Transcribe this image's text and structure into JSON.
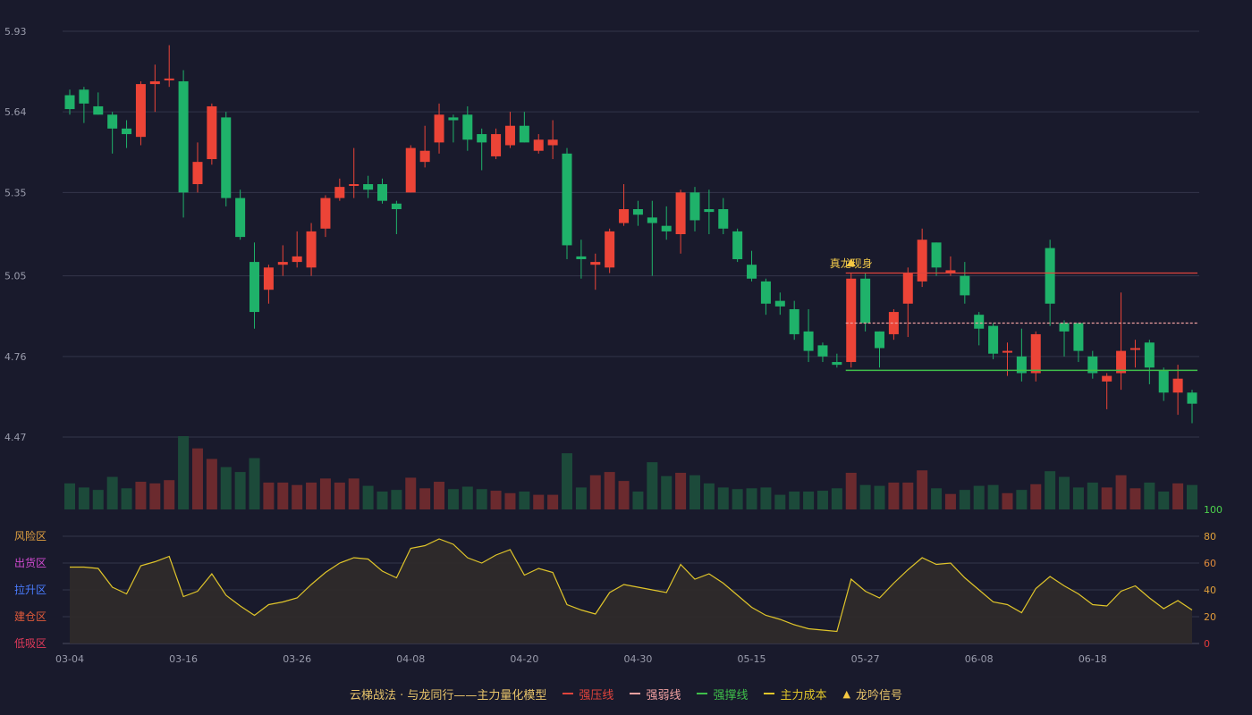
{
  "colors": {
    "background": "#191a2c",
    "grid": "#33354a",
    "axis_text": "#9a9cac",
    "up": "#ec4437",
    "down": "#1fb26a",
    "vol_up": "#6b2a2e",
    "vol_down": "#1c4a3a",
    "osc_line": "#e0c52a",
    "osc_fill": "#2e2a2a",
    "strong_pressure": "#e0443c",
    "weak_line": "#f0a0a0",
    "support": "#3fbf4a"
  },
  "chart_data": {
    "type": "candlestick",
    "ylim": [
      4.47,
      5.93
    ],
    "yticks": [
      "5.93",
      "5.64",
      "5.35",
      "5.05",
      "4.76",
      "4.47"
    ],
    "xtick_labels": [
      {
        "i": 0,
        "label": "03-04"
      },
      {
        "i": 8,
        "label": "03-16"
      },
      {
        "i": 16,
        "label": "03-26"
      },
      {
        "i": 24,
        "label": "04-08"
      },
      {
        "i": 32,
        "label": "04-20"
      },
      {
        "i": 40,
        "label": "04-30"
      },
      {
        "i": 48,
        "label": "05-15"
      },
      {
        "i": 56,
        "label": "05-27"
      },
      {
        "i": 64,
        "label": "06-08"
      },
      {
        "i": 72,
        "label": "06-18"
      }
    ],
    "candles": [
      [
        5.7,
        5.65,
        5.72,
        5.63
      ],
      [
        5.72,
        5.67,
        5.73,
        5.6
      ],
      [
        5.66,
        5.63,
        5.71,
        5.63
      ],
      [
        5.63,
        5.58,
        5.64,
        5.49
      ],
      [
        5.58,
        5.56,
        5.61,
        5.51
      ],
      [
        5.55,
        5.74,
        5.75,
        5.52
      ],
      [
        5.74,
        5.75,
        5.81,
        5.64
      ],
      [
        5.76,
        5.76,
        5.88,
        5.73
      ],
      [
        5.75,
        5.35,
        5.79,
        5.26
      ],
      [
        5.38,
        5.46,
        5.53,
        5.35
      ],
      [
        5.47,
        5.66,
        5.67,
        5.45
      ],
      [
        5.62,
        5.33,
        5.64,
        5.3
      ],
      [
        5.33,
        5.19,
        5.36,
        5.18
      ],
      [
        5.1,
        4.92,
        5.17,
        4.86
      ],
      [
        5.0,
        5.08,
        5.09,
        4.95
      ],
      [
        5.09,
        5.1,
        5.16,
        5.05
      ],
      [
        5.1,
        5.12,
        5.21,
        5.08
      ],
      [
        5.08,
        5.21,
        5.24,
        5.05
      ],
      [
        5.22,
        5.33,
        5.34,
        5.19
      ],
      [
        5.33,
        5.37,
        5.4,
        5.32
      ],
      [
        5.38,
        5.38,
        5.51,
        5.33
      ],
      [
        5.38,
        5.36,
        5.41,
        5.33
      ],
      [
        5.38,
        5.32,
        5.4,
        5.31
      ],
      [
        5.31,
        5.29,
        5.32,
        5.2
      ],
      [
        5.35,
        5.51,
        5.52,
        5.35
      ],
      [
        5.46,
        5.5,
        5.59,
        5.44
      ],
      [
        5.53,
        5.63,
        5.67,
        5.49
      ],
      [
        5.62,
        5.61,
        5.63,
        5.53
      ],
      [
        5.63,
        5.54,
        5.66,
        5.5
      ],
      [
        5.56,
        5.53,
        5.58,
        5.43
      ],
      [
        5.48,
        5.56,
        5.58,
        5.47
      ],
      [
        5.52,
        5.59,
        5.64,
        5.51
      ],
      [
        5.59,
        5.53,
        5.64,
        5.53
      ],
      [
        5.5,
        5.54,
        5.56,
        5.49
      ],
      [
        5.52,
        5.54,
        5.61,
        5.47
      ],
      [
        5.49,
        5.16,
        5.51,
        5.11
      ],
      [
        5.12,
        5.11,
        5.18,
        5.04
      ],
      [
        5.09,
        5.1,
        5.13,
        5.0
      ],
      [
        5.08,
        5.21,
        5.22,
        5.06
      ],
      [
        5.24,
        5.29,
        5.38,
        5.23
      ],
      [
        5.29,
        5.27,
        5.32,
        5.23
      ],
      [
        5.26,
        5.24,
        5.32,
        5.05
      ],
      [
        5.23,
        5.21,
        5.3,
        5.18
      ],
      [
        5.2,
        5.35,
        5.36,
        5.13
      ],
      [
        5.35,
        5.25,
        5.37,
        5.21
      ],
      [
        5.29,
        5.28,
        5.36,
        5.2
      ],
      [
        5.29,
        5.22,
        5.33,
        5.2
      ],
      [
        5.21,
        5.11,
        5.22,
        5.1
      ],
      [
        5.09,
        5.04,
        5.14,
        5.03
      ],
      [
        5.03,
        4.95,
        5.04,
        4.91
      ],
      [
        4.96,
        4.94,
        4.99,
        4.91
      ],
      [
        4.93,
        4.84,
        4.96,
        4.82
      ],
      [
        4.85,
        4.78,
        4.93,
        4.74
      ],
      [
        4.8,
        4.76,
        4.81,
        4.74
      ],
      [
        4.74,
        4.73,
        4.77,
        4.72
      ],
      [
        4.74,
        5.04,
        5.06,
        4.72
      ],
      [
        5.04,
        4.88,
        5.06,
        4.85
      ],
      [
        4.85,
        4.79,
        4.85,
        4.72
      ],
      [
        4.84,
        4.92,
        4.93,
        4.82
      ],
      [
        4.95,
        5.06,
        5.08,
        4.83
      ],
      [
        5.03,
        5.18,
        5.22,
        5.01
      ],
      [
        5.17,
        5.08,
        5.17,
        5.05
      ],
      [
        5.06,
        5.07,
        5.12,
        5.05
      ],
      [
        5.05,
        4.98,
        5.1,
        4.95
      ],
      [
        4.91,
        4.86,
        4.92,
        4.8
      ],
      [
        4.87,
        4.77,
        4.88,
        4.75
      ],
      [
        4.78,
        4.78,
        4.81,
        4.69
      ],
      [
        4.76,
        4.7,
        4.86,
        4.67
      ],
      [
        4.7,
        4.84,
        4.85,
        4.67
      ],
      [
        5.15,
        4.95,
        5.18,
        4.87
      ],
      [
        4.88,
        4.85,
        4.89,
        4.76
      ],
      [
        4.88,
        4.78,
        4.88,
        4.74
      ],
      [
        4.76,
        4.7,
        4.78,
        4.68
      ],
      [
        4.67,
        4.69,
        4.7,
        4.57
      ],
      [
        4.7,
        4.78,
        4.99,
        4.64
      ],
      [
        4.79,
        4.79,
        4.82,
        4.72
      ],
      [
        4.81,
        4.72,
        4.82,
        4.66
      ],
      [
        4.71,
        4.63,
        4.72,
        4.6
      ],
      [
        4.63,
        4.68,
        4.73,
        4.55
      ],
      [
        4.63,
        4.59,
        4.64,
        4.52
      ]
    ],
    "volume": [
      32,
      27,
      24,
      40,
      26,
      34,
      32,
      36,
      90,
      75,
      62,
      52,
      46,
      63,
      33,
      33,
      30,
      33,
      38,
      33,
      38,
      29,
      22,
      24,
      39,
      26,
      34,
      25,
      28,
      25,
      23,
      20,
      22,
      18,
      18,
      69,
      27,
      42,
      46,
      35,
      22,
      58,
      41,
      45,
      42,
      32,
      27,
      25,
      26,
      27,
      18,
      22,
      22,
      23,
      26,
      45,
      30,
      29,
      33,
      33,
      48,
      26,
      19,
      24,
      29,
      30,
      20,
      24,
      31,
      47,
      40,
      27,
      33,
      27,
      42,
      26,
      33,
      22,
      32,
      30
    ],
    "annotation": {
      "i": 55,
      "text": "真龙现身"
    },
    "lines": {
      "strong_pressure": 5.06,
      "weak": 4.88,
      "support": 4.71,
      "start_index": 55
    },
    "osc": {
      "yticks": [
        0,
        20,
        40,
        60,
        80,
        100
      ],
      "zones": [
        "风险区",
        "出货区",
        "拉升区",
        "建仓区",
        "低吸区"
      ],
      "values": [
        57,
        57,
        56,
        42,
        37,
        58,
        61,
        65,
        35,
        39,
        52,
        36,
        28,
        21,
        29,
        31,
        34,
        44,
        53,
        60,
        64,
        63,
        54,
        49,
        71,
        73,
        78,
        74,
        64,
        60,
        66,
        70,
        51,
        56,
        53,
        29,
        25,
        22,
        38,
        44,
        42,
        40,
        38,
        59,
        48,
        52,
        45,
        36,
        27,
        21,
        18,
        14,
        11,
        10,
        9,
        48,
        39,
        34,
        45,
        55,
        64,
        59,
        60,
        49,
        40,
        31,
        29,
        23,
        41,
        50,
        43,
        37,
        29,
        28,
        39,
        43,
        34,
        26,
        32,
        25
      ]
    }
  },
  "legend": {
    "model": "云梯战法 · 与龙同行——主力量化模型",
    "items": [
      {
        "label": "强压线",
        "color": "#e0443c",
        "style": "solid"
      },
      {
        "label": "强弱线",
        "color": "#f0a0a0",
        "style": "dashed"
      },
      {
        "label": "强撑线",
        "color": "#3fbf4a",
        "style": "solid"
      },
      {
        "label": "主力成本",
        "color": "#e0c52a",
        "style": "dashed"
      },
      {
        "label": "龙吟信号",
        "color": "#f5c842",
        "style": "triangle"
      }
    ]
  }
}
